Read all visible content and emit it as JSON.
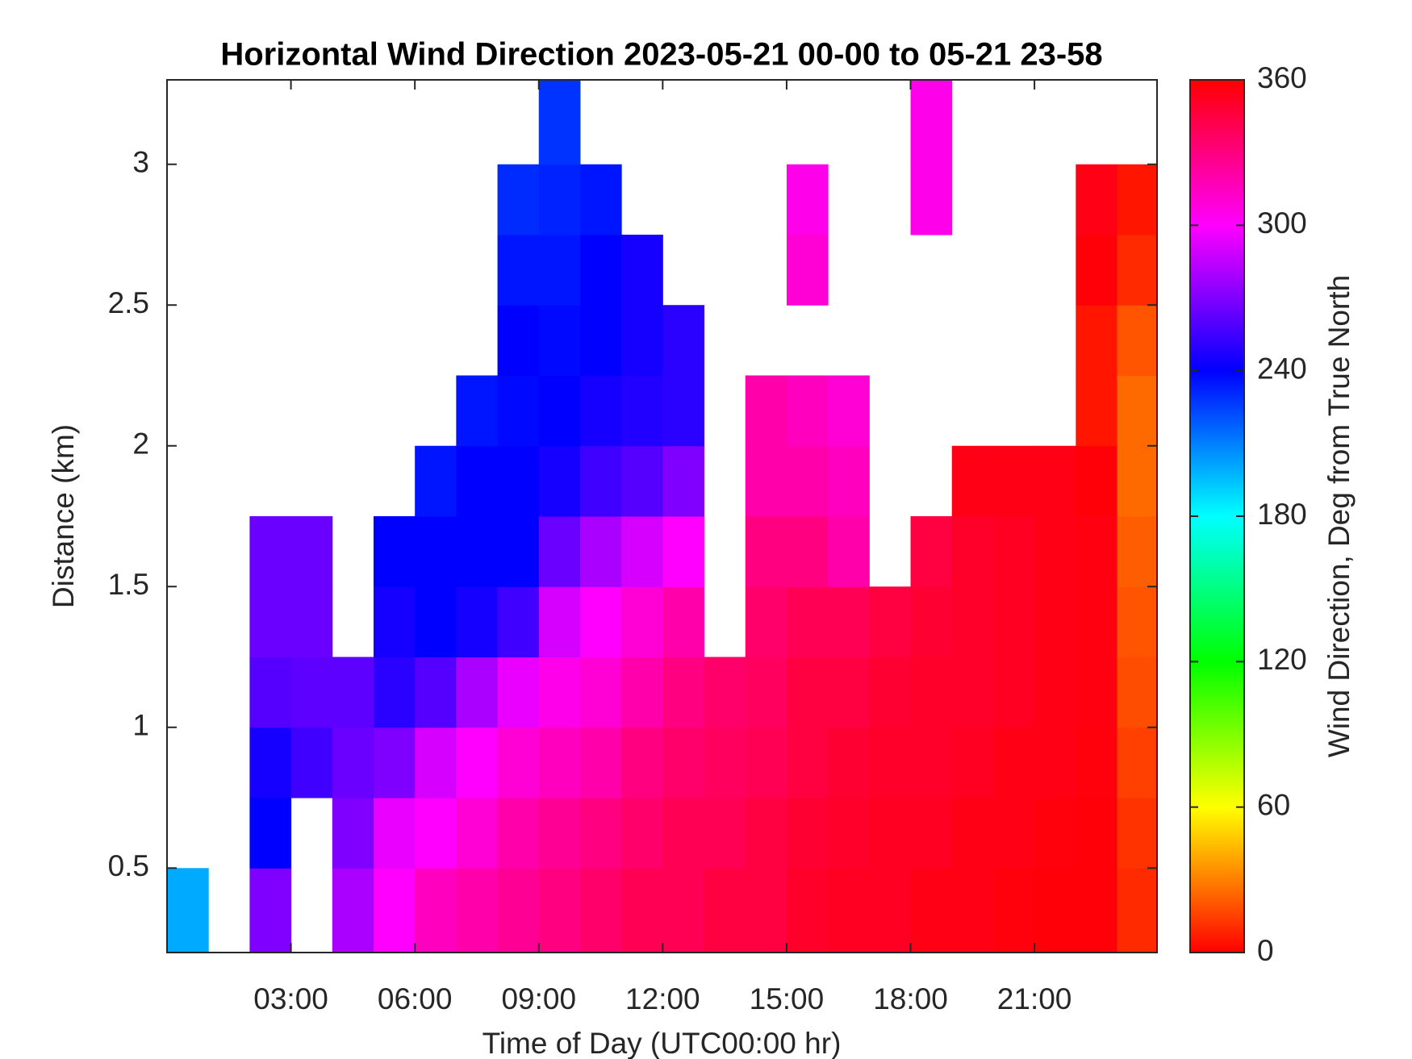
{
  "chart_data": {
    "type": "heatmap",
    "title": "Horizontal Wind Direction 2023-05-21 00-00 to 05-21 23-58",
    "x_label": "Time of Day (UTC00:00 hr)",
    "y_label": "Distance (km)",
    "colorbar_label": "Wind Direction, Deg from True North",
    "colormap": "hsv",
    "xlim": [
      0,
      23.967
    ],
    "ylim": [
      0.2,
      3.3
    ],
    "xticks": [
      {
        "value": 3,
        "label": "03:00"
      },
      {
        "value": 6,
        "label": "06:00"
      },
      {
        "value": 9,
        "label": "09:00"
      },
      {
        "value": 12,
        "label": "12:00"
      },
      {
        "value": 15,
        "label": "15:00"
      },
      {
        "value": 18,
        "label": "18:00"
      },
      {
        "value": 21,
        "label": "21:00"
      }
    ],
    "yticks": [
      0.5,
      1,
      1.5,
      2,
      2.5,
      3
    ],
    "clim": [
      0,
      360
    ],
    "cticks": [
      0,
      60,
      120,
      180,
      240,
      300,
      360
    ],
    "x_edges": [
      0,
      1,
      2,
      3,
      4,
      5,
      6,
      7,
      8,
      9,
      10,
      11,
      12,
      13,
      14,
      15,
      16,
      17,
      18,
      19,
      20,
      21,
      22,
      23,
      24
    ],
    "y_edges": [
      0.2,
      0.5,
      0.75,
      1,
      1.25,
      1.5,
      1.75,
      2,
      2.25,
      2.5,
      2.75,
      3,
      3.3
    ],
    "z": [
      [
        200,
        null,
        270,
        null,
        280,
        300,
        315,
        320,
        325,
        330,
        335,
        340,
        340,
        345,
        345,
        350,
        352,
        352,
        355,
        355,
        357,
        358,
        358,
        10
      ],
      [
        null,
        null,
        240,
        null,
        270,
        295,
        300,
        310,
        320,
        325,
        330,
        335,
        340,
        340,
        345,
        348,
        350,
        352,
        352,
        355,
        355,
        357,
        358,
        12
      ],
      [
        null,
        null,
        245,
        255,
        265,
        270,
        290,
        300,
        310,
        315,
        320,
        330,
        335,
        338,
        340,
        345,
        348,
        350,
        350,
        352,
        355,
        355,
        357,
        15
      ],
      [
        null,
        null,
        260,
        262,
        262,
        250,
        260,
        280,
        295,
        305,
        310,
        320,
        330,
        335,
        338,
        345,
        345,
        348,
        350,
        350,
        352,
        355,
        356,
        18
      ],
      [
        null,
        null,
        265,
        265,
        null,
        245,
        240,
        245,
        255,
        290,
        300,
        310,
        320,
        null,
        335,
        340,
        340,
        345,
        348,
        350,
        352,
        355,
        356,
        20
      ],
      [
        null,
        null,
        265,
        265,
        null,
        240,
        240,
        240,
        240,
        265,
        280,
        290,
        300,
        null,
        330,
        330,
        320,
        null,
        345,
        350,
        352,
        355,
        356,
        22
      ],
      [
        null,
        null,
        null,
        null,
        null,
        null,
        235,
        240,
        240,
        245,
        255,
        260,
        270,
        null,
        320,
        320,
        315,
        null,
        null,
        355,
        355,
        355,
        358,
        25
      ],
      [
        null,
        null,
        null,
        null,
        null,
        null,
        null,
        235,
        238,
        240,
        245,
        248,
        250,
        null,
        320,
        315,
        310,
        null,
        null,
        null,
        null,
        null,
        5,
        25
      ],
      [
        null,
        null,
        null,
        null,
        null,
        null,
        null,
        null,
        240,
        238,
        240,
        245,
        250,
        null,
        null,
        null,
        null,
        null,
        null,
        null,
        null,
        null,
        5,
        20
      ],
      [
        null,
        null,
        null,
        null,
        null,
        null,
        null,
        null,
        235,
        235,
        240,
        245,
        null,
        null,
        null,
        310,
        null,
        null,
        null,
        null,
        null,
        null,
        358,
        10
      ],
      [
        null,
        null,
        null,
        null,
        null,
        null,
        null,
        null,
        230,
        232,
        235,
        null,
        null,
        null,
        null,
        305,
        null,
        null,
        305,
        null,
        null,
        null,
        355,
        5
      ],
      [
        null,
        null,
        null,
        null,
        null,
        null,
        null,
        null,
        null,
        228,
        null,
        null,
        null,
        null,
        null,
        null,
        null,
        null,
        305,
        null,
        null,
        null,
        null,
        null
      ]
    ]
  }
}
